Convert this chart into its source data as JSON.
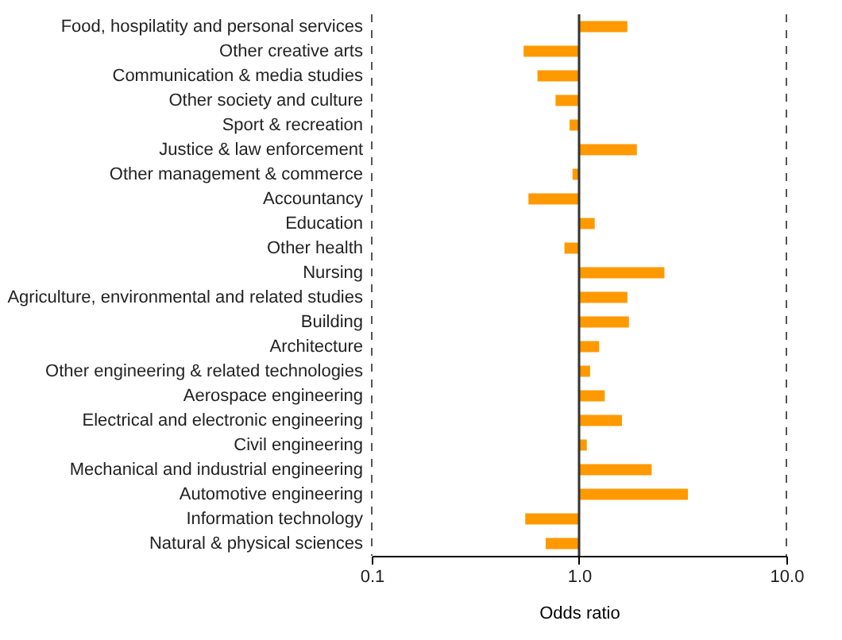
{
  "chart_data": {
    "type": "bar",
    "orientation": "horizontal",
    "log": "x",
    "xlabel": "Odds ratio",
    "categories": [
      "Food, hospilatity and personal services",
      "Other creative arts",
      "Communication & media studies",
      "Other society and culture",
      "Sport & recreation",
      "Justice & law  enforcement",
      "Other management & commerce",
      "Accountancy",
      "Education",
      "Other health",
      "Nursing",
      "Agriculture, environmental and related studies",
      "Building",
      "Architecture",
      "Other engineering & related technologies",
      "Aerospace engineering",
      "Electrical and electronic engineering",
      "Civil engineering",
      "Mechanical and industrial engineering",
      "Automotive engineering",
      "Information technology",
      "Natural & physical sciences"
    ],
    "base": [
      1,
      1,
      1,
      1,
      1,
      1,
      1,
      1,
      1,
      1,
      1,
      1,
      1,
      1,
      1,
      1,
      1,
      1,
      1,
      1,
      1,
      1
    ],
    "values": [
      0.71,
      -0.46,
      -0.37,
      -0.23,
      -0.1,
      0.9,
      -0.07,
      -0.43,
      0.19,
      -0.15,
      1.58,
      0.71,
      0.74,
      0.25,
      0.13,
      0.33,
      0.61,
      0.09,
      1.24,
      2.35,
      -0.45,
      -0.31
    ],
    "color": "#ff9900",
    "xlim": [
      0.1,
      10
    ],
    "xticks": [
      {
        "value": 0.1,
        "label": "0.1"
      },
      {
        "value": 1,
        "label": "1.0"
      },
      {
        "value": 10,
        "label": "10.0"
      }
    ],
    "ref_lines": [
      {
        "axis": "x",
        "value": 1,
        "color": "#333333"
      }
    ]
  }
}
